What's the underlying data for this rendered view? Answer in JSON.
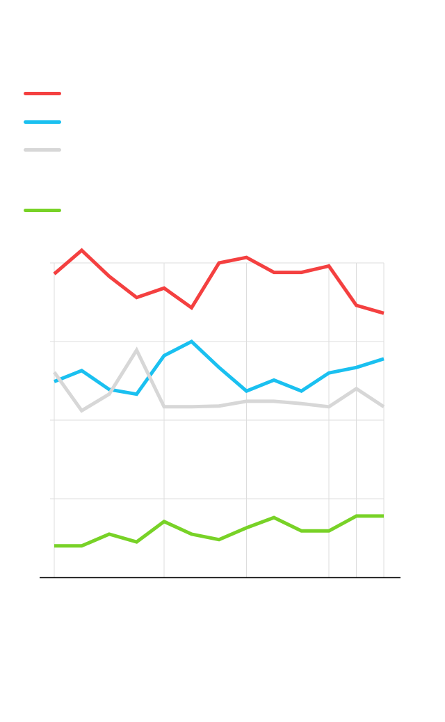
{
  "chart_data": {
    "type": "line",
    "title": "",
    "xlabel": "",
    "ylabel": "",
    "grid": true,
    "legend_position": "top-left",
    "x": [
      1,
      2,
      3,
      4,
      5,
      6,
      7,
      8,
      9,
      10,
      11,
      12,
      13
    ],
    "ylim": [
      0,
      4
    ],
    "series": [
      {
        "color": "#f44040",
        "values": [
          3.86,
          4.16,
          3.83,
          3.56,
          3.68,
          3.43,
          4.0,
          4.07,
          3.88,
          3.88,
          3.96,
          3.46,
          3.36
        ]
      },
      {
        "color": "#1ac0f0",
        "values": [
          2.49,
          2.63,
          2.39,
          2.33,
          2.82,
          3.0,
          2.67,
          2.37,
          2.51,
          2.37,
          2.6,
          2.67,
          2.78
        ]
      },
      {
        "color": "#d7d7d7",
        "values": [
          2.61,
          2.12,
          2.33,
          2.89,
          2.17,
          2.17,
          2.18,
          2.24,
          2.24,
          2.21,
          2.17,
          2.4,
          2.17
        ]
      },
      {
        "color": "#78d227",
        "values": [
          0.4,
          0.4,
          0.55,
          0.45,
          0.71,
          0.55,
          0.48,
          0.63,
          0.76,
          0.59,
          0.59,
          0.78,
          0.78
        ]
      }
    ]
  }
}
